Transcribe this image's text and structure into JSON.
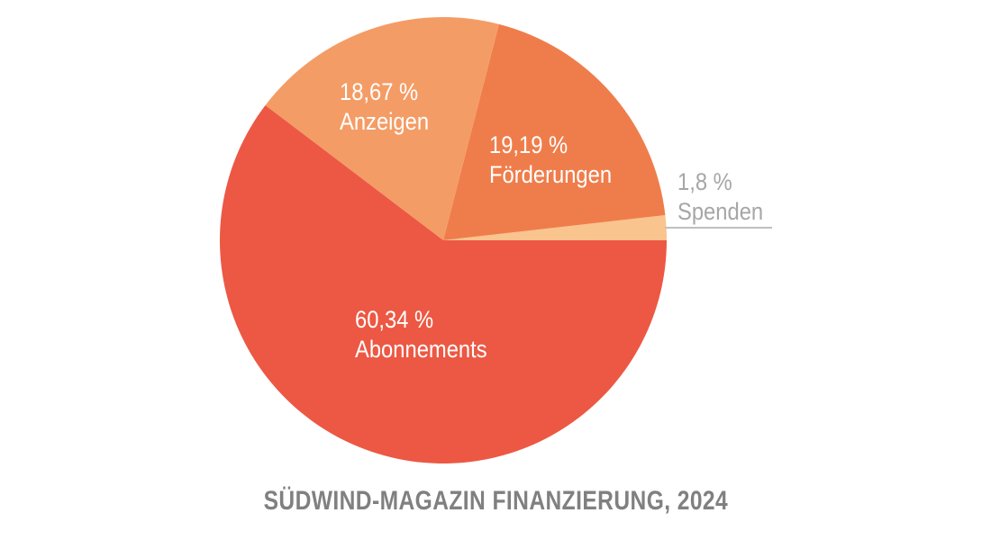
{
  "chart_data": {
    "type": "pie",
    "title": "SÜDWIND-MAGAZIN FINANZIERUNG, 2024",
    "categories": [
      "Spenden",
      "Förderungen",
      "Anzeigen",
      "Abonnements"
    ],
    "values": [
      1.8,
      19.19,
      18.67,
      60.34
    ],
    "value_labels": [
      "1,8 %",
      "19,19 %",
      "18,67 %",
      "60,34 %"
    ],
    "colors": [
      "#f9c48e",
      "#ef7d4b",
      "#f49c65",
      "#ec5843"
    ],
    "start_angle": "3 o'clock",
    "direction": "counterclockwise",
    "legend": "none (direct labels)"
  },
  "slices": {
    "spenden": {
      "pct": "1,8 %",
      "name": "Spenden"
    },
    "foerderungen": {
      "pct": "19,19 %",
      "name": "Förderungen"
    },
    "anzeigen": {
      "pct": "18,67 %",
      "name": "Anzeigen"
    },
    "abonnements": {
      "pct": "60,34 %",
      "name": "Abonnements"
    }
  },
  "title": "SÜDWIND-MAGAZIN FINANZIERUNG, 2024"
}
